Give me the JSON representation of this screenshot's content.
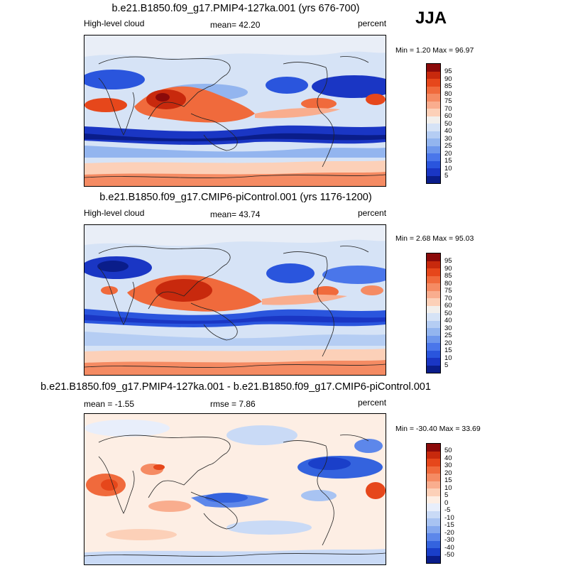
{
  "season": "JJA",
  "chart_data": [
    {
      "type": "heatmap",
      "title": "b.e21.B1850.f09_g17.PMIP4-127ka.001 (yrs 676-700)",
      "left_label": "High-level cloud",
      "center_label": "mean=  42.20",
      "units": "percent",
      "minmax": "Min =   1.20 Max =  96.97",
      "mean": 42.2,
      "min": 1.2,
      "max": 96.97,
      "colorbar_levels": [
        "95",
        "90",
        "85",
        "80",
        "75",
        "70",
        "60",
        "50",
        "40",
        "30",
        "25",
        "20",
        "15",
        "10",
        "5"
      ],
      "colorbar_colors": [
        "#8b0a0a",
        "#c8290d",
        "#e6471b",
        "#f06a3c",
        "#f58b63",
        "#f9ad8e",
        "#fcd0b8",
        "#f2efec",
        "#d6e3f6",
        "#b5cdf3",
        "#93b5ef",
        "#6e97ec",
        "#4a76ea",
        "#2a55dd",
        "#1a36c4",
        "#0a1d8a"
      ],
      "xlim": [
        -180,
        180
      ],
      "ylim": [
        -90,
        90
      ]
    },
    {
      "type": "heatmap",
      "title": "b.e21.B1850.f09_g17.CMIP6-piControl.001 (yrs 1176-1200)",
      "left_label": "High-level cloud",
      "center_label": "mean=  43.74",
      "units": "percent",
      "minmax": "Min =   2.68 Max =  95.03",
      "mean": 43.74,
      "min": 2.68,
      "max": 95.03,
      "colorbar_levels": [
        "95",
        "90",
        "85",
        "80",
        "75",
        "70",
        "60",
        "50",
        "40",
        "30",
        "25",
        "20",
        "15",
        "10",
        "5"
      ],
      "colorbar_colors": [
        "#8b0a0a",
        "#c8290d",
        "#e6471b",
        "#f06a3c",
        "#f58b63",
        "#f9ad8e",
        "#fcd0b8",
        "#f2efec",
        "#d6e3f6",
        "#b5cdf3",
        "#93b5ef",
        "#6e97ec",
        "#4a76ea",
        "#2a55dd",
        "#1a36c4",
        "#0a1d8a"
      ],
      "xlim": [
        -180,
        180
      ],
      "ylim": [
        -90,
        90
      ]
    },
    {
      "type": "heatmap",
      "title": "b.e21.B1850.f09_g17.PMIP4-127ka.001 - b.e21.B1850.f09_g17.CMIP6-piControl.001",
      "left_label": "mean =  -1.55",
      "center_label": "rmse =   7.86",
      "units": "percent",
      "minmax": "Min = -30.40 Max =  33.69",
      "mean": -1.55,
      "rmse": 7.86,
      "min": -30.4,
      "max": 33.69,
      "colorbar_levels": [
        "50",
        "40",
        "30",
        "20",
        "15",
        "10",
        "5",
        "0",
        "-5",
        "-10",
        "-15",
        "-20",
        "-30",
        "-40",
        "-50"
      ],
      "colorbar_colors": [
        "#8b0a0a",
        "#c8290d",
        "#e6471b",
        "#f06a3c",
        "#f58b63",
        "#f9ad8e",
        "#fcd0b8",
        "#fdeee4",
        "#e8eefb",
        "#c9daf6",
        "#a8c3f2",
        "#85a8ee",
        "#5d87ea",
        "#3463de",
        "#1a3fc9",
        "#0a1d8a"
      ],
      "xlim": [
        -180,
        180
      ],
      "ylim": [
        -90,
        90
      ]
    }
  ]
}
